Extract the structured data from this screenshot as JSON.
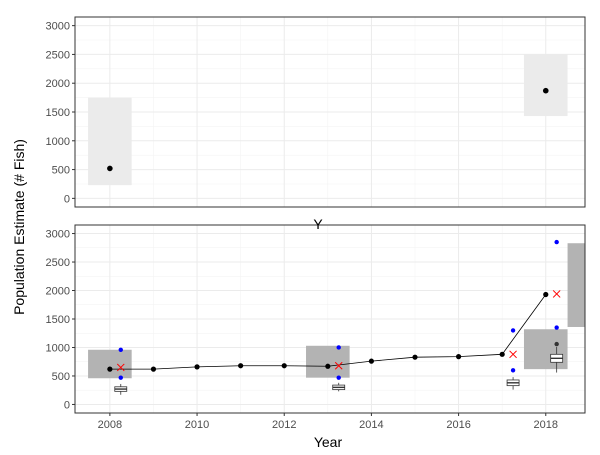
{
  "chart_data": [
    {
      "type": "scatter",
      "panel": "top",
      "xlabel": "",
      "ylabel": "",
      "xlim": [
        2007.2,
        2018.9
      ],
      "ylim": [
        -150,
        3150
      ],
      "y_ticks": [
        0,
        500,
        1000,
        1500,
        2000,
        2500,
        3000
      ],
      "x_ticks": [],
      "grid": true,
      "bands": [
        {
          "x": [
            2007.5,
            2008.5
          ],
          "ymin": 230,
          "ymax": 1750
        },
        {
          "x": [
            2017.5,
            2018.5
          ],
          "ymin": 1430,
          "ymax": 2500
        }
      ],
      "points": [
        {
          "x": 2008,
          "y": 520
        },
        {
          "x": 2018,
          "y": 1870
        }
      ],
      "colors": {
        "band": "#ebebeb",
        "point": "#000000"
      }
    },
    {
      "type": "line",
      "panel": "bottom",
      "xlabel": "Year",
      "ylabel": "Population Estimate (# Fish)",
      "xlim": [
        2007.2,
        2018.9
      ],
      "ylim": [
        -150,
        3150
      ],
      "y_ticks": [
        0,
        500,
        1000,
        1500,
        2000,
        2500,
        3000
      ],
      "x_ticks": [
        2008,
        2010,
        2012,
        2014,
        2016,
        2018
      ],
      "grid": true,
      "series": [
        {
          "x": [
            2008,
            2009,
            2010,
            2011,
            2012,
            2013,
            2014,
            2015,
            2016,
            2017,
            2018
          ],
          "y": [
            620,
            620,
            660,
            680,
            680,
            670,
            760,
            830,
            840,
            880,
            1930
          ]
        }
      ],
      "bands": [
        {
          "x": [
            2007.5,
            2008.5
          ],
          "ymin": 460,
          "ymax": 960
        },
        {
          "x": [
            2012.5,
            2013.5
          ],
          "ymin": 470,
          "ymax": 1030
        },
        {
          "x": [
            2017.5,
            2018.5
          ],
          "ymin": 620,
          "ymax": 1320
        },
        {
          "x": [
            2018.5,
            2019.5
          ],
          "ymin": 1360,
          "ymax": 2830
        }
      ],
      "crosses": [
        {
          "x": 2008.25,
          "y": 650
        },
        {
          "x": 2013.25,
          "y": 680
        },
        {
          "x": 2017.25,
          "y": 880
        },
        {
          "x": 2018.25,
          "y": 1940
        }
      ],
      "blue_points": [
        {
          "x": 2008.25,
          "y": 960
        },
        {
          "x": 2008.25,
          "y": 470
        },
        {
          "x": 2013.25,
          "y": 1000
        },
        {
          "x": 2013.25,
          "y": 470
        },
        {
          "x": 2017.25,
          "y": 1300
        },
        {
          "x": 2017.25,
          "y": 600
        },
        {
          "x": 2018.25,
          "y": 2850
        },
        {
          "x": 2018.25,
          "y": 1350
        }
      ],
      "boxplots": [
        {
          "x": 2008.25,
          "whisker_low": 170,
          "q1": 230,
          "median": 270,
          "q3": 310,
          "whisker_high": 360
        },
        {
          "x": 2013.25,
          "whisker_low": 230,
          "q1": 260,
          "median": 300,
          "q3": 340,
          "whisker_high": 380
        },
        {
          "x": 2017.25,
          "whisker_low": 260,
          "q1": 330,
          "median": 380,
          "q3": 430,
          "whisker_high": 480
        },
        {
          "x": 2018.25,
          "whisker_low": 560,
          "q1": 740,
          "median": 810,
          "q3": 880,
          "whisker_high": 1010,
          "outliers": [
            1060
          ]
        }
      ],
      "colors": {
        "band": "#b3b3b3",
        "line": "#000000",
        "cross": "#ff0000",
        "blue_point": "#0000ff",
        "box": "#ffffff"
      }
    }
  ],
  "top_panel_stray_label": "Y"
}
